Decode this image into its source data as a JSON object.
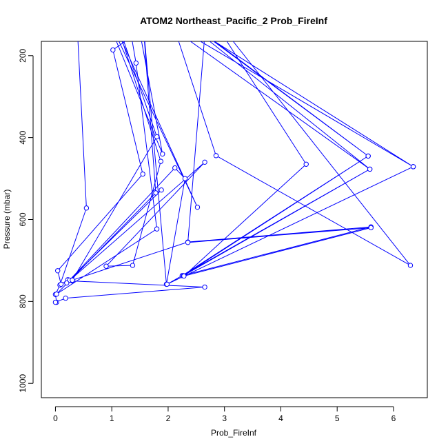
{
  "chart_data": {
    "type": "line",
    "title": "ATOM2 Northeast_Pacific_2 Prob_FireInf",
    "xlabel": "Prob_FireInf",
    "ylabel": "Pressure (mbar)",
    "xlim": [
      -0.25,
      6.6
    ],
    "ylim": [
      1035,
      165
    ],
    "y_reversed": true,
    "grid": false,
    "xticks": [
      0,
      1,
      2,
      3,
      4,
      5,
      6
    ],
    "yticks": [
      200,
      400,
      600,
      800,
      1000
    ],
    "color": "#0000ff",
    "series": [
      {
        "name": "",
        "points": [
          [
            0.35,
            30
          ],
          [
            0.55,
            572
          ],
          [
            0.08,
            760
          ],
          [
            0.0,
            783
          ],
          [
            0.02,
            802
          ],
          [
            0.0,
            802
          ],
          [
            0.18,
            792
          ],
          [
            2.65,
            765
          ],
          [
            0.3,
            750
          ],
          [
            0.22,
            747
          ],
          [
            0.1,
            758
          ],
          [
            0.04,
            725
          ],
          [
            1.55,
            489
          ],
          [
            1.02,
            186
          ],
          [
            1.35,
            154
          ],
          [
            1.43,
            218
          ],
          [
            1.8,
            623
          ],
          [
            0.02,
            782
          ],
          [
            1.78,
            535
          ],
          [
            1.55,
            110
          ],
          [
            1.97,
            758
          ],
          [
            2.3,
            500
          ],
          [
            2.12,
            474
          ],
          [
            0.25,
            748
          ],
          [
            1.88,
            528
          ],
          [
            0.2,
            755
          ],
          [
            2.65,
            460
          ],
          [
            0.9,
            714
          ],
          [
            1.37,
            712
          ],
          [
            1.87,
            458
          ],
          [
            0.9,
            40
          ],
          [
            1.8,
            398
          ],
          [
            0.3,
            748
          ],
          [
            2.35,
            655
          ],
          [
            5.6,
            618
          ],
          [
            2.25,
            737
          ],
          [
            5.55,
            445
          ],
          [
            2.27,
            737
          ],
          [
            5.58,
            477
          ],
          [
            1.98,
            758
          ],
          [
            6.35,
            471
          ],
          [
            2.65,
            150
          ],
          [
            2.35,
            656
          ],
          [
            5.6,
            620
          ],
          [
            2.28,
            738
          ],
          [
            4.45,
            465
          ],
          [
            2.55,
            60
          ],
          [
            6.3,
            712
          ],
          [
            2.85,
            444
          ],
          [
            1.98,
            78
          ],
          [
            5.55,
            445
          ],
          [
            1.8,
            62
          ],
          [
            5.58,
            477
          ],
          [
            1.55,
            82
          ],
          [
            6.35,
            471
          ],
          [
            1.4,
            70
          ],
          [
            1.9,
            440
          ],
          [
            0.8,
            70
          ],
          [
            2.52,
            570
          ],
          [
            0.9,
            80
          ]
        ]
      }
    ]
  }
}
